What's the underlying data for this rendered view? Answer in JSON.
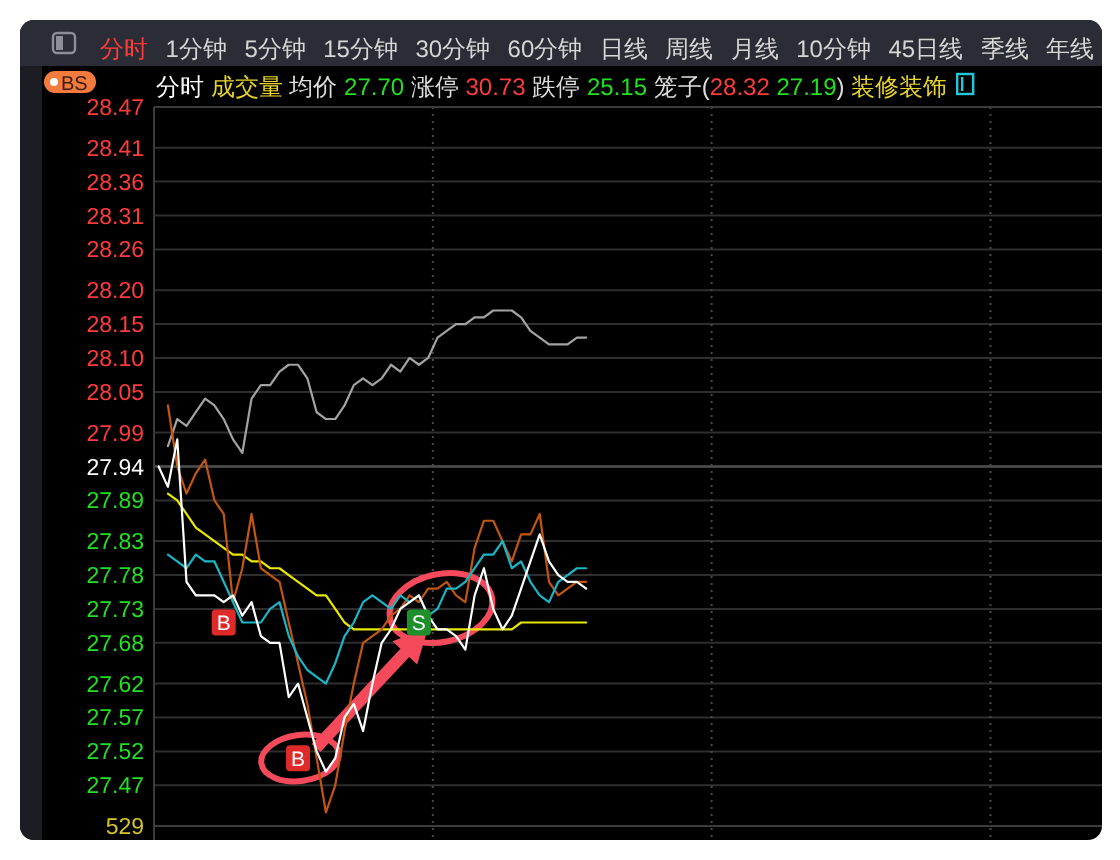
{
  "chart_data": {
    "type": "line",
    "subtitle": "分时 成交量 均价 27.70 涨停 30.73 跌停 25.15 笼子(28.32 27.19) 装修装饰",
    "annotations": [
      "分时",
      "1分钟",
      "5分钟",
      "15分钟",
      "30分钟",
      "60分钟",
      "日线",
      "周线",
      "月线",
      "10分钟",
      "45日线",
      "季线",
      "年线",
      "BS",
      "529"
    ],
    "categories": [
      null,
      null,
      null,
      null,
      null,
      null,
      null,
      null,
      null,
      null,
      null,
      null,
      null,
      null,
      null,
      null,
      null,
      null,
      null,
      null,
      null,
      null,
      null,
      null,
      null,
      null,
      null,
      null,
      null,
      null,
      null,
      null,
      null,
      null,
      null,
      null,
      null,
      null,
      null,
      null,
      null,
      null,
      null,
      null,
      null,
      null,
      null,
      null,
      null,
      null,
      null,
      null,
      null,
      null,
      null,
      null,
      null,
      null,
      null,
      null,
      null,
      null,
      null,
      null,
      null,
      null,
      null,
      null,
      null,
      null,
      null,
      null,
      null,
      null,
      null,
      null,
      null,
      null,
      null,
      null,
      null,
      null,
      null,
      null,
      null,
      null,
      null,
      null,
      null,
      null,
      null,
      null,
      null,
      null,
      null,
      null,
      null,
      null,
      null,
      null,
      null,
      null
    ],
    "ylim": [
      27.41,
      28.47
    ],
    "yticks": [
      28.47,
      28.41,
      28.36,
      28.31,
      28.26,
      {
        "value": 28.2,
        "label": "28.20"
      },
      28.15,
      {
        "value": 28.1,
        "label": "28.10"
      },
      28.05,
      27.99,
      27.94,
      27.89,
      27.83,
      27.78,
      27.73,
      27.68,
      27.62,
      27.57,
      27.52,
      27.47
    ],
    "tick_labels": "y",
    "grid": "y",
    "ref_lines": [
      {
        "axis": "y",
        "value": 27.94,
        "color": "#4d4d4d"
      }
    ],
    "series": [
      {
        "color": "#a3a3a3",
        "values": [
          null,
          27.97,
          28.01,
          28.0,
          28.02,
          28.04,
          28.03,
          28.01,
          27.98,
          27.96,
          28.04,
          28.06,
          28.06,
          28.08,
          28.09,
          28.09,
          28.07,
          28.02,
          28.01,
          28.01,
          28.03,
          28.06,
          28.07,
          28.06,
          28.07,
          28.09,
          28.08,
          28.1,
          28.09,
          28.1,
          28.13,
          28.14,
          28.15,
          28.15,
          28.16,
          28.16,
          28.17,
          28.17,
          28.17,
          28.16,
          28.14,
          28.13,
          28.12,
          28.12,
          28.12,
          28.13,
          28.13,
          null,
          null,
          null,
          null,
          null,
          null,
          null,
          null,
          null,
          null,
          null,
          null,
          null,
          null,
          null,
          null,
          null,
          null,
          null,
          null,
          null,
          null,
          null,
          null,
          null,
          null,
          null,
          null,
          null,
          null,
          null,
          null,
          null,
          null,
          null,
          null,
          null,
          null,
          null,
          null,
          null,
          null,
          null,
          null,
          null,
          null,
          null,
          null,
          null,
          null,
          null,
          null,
          null,
          null,
          null
        ]
      },
      {
        "color": "#e8e800",
        "values": [
          null,
          27.9,
          27.89,
          27.87,
          27.85,
          27.84,
          27.83,
          27.82,
          27.81,
          27.81,
          27.8,
          27.8,
          27.79,
          27.79,
          27.78,
          27.77,
          27.76,
          27.75,
          27.75,
          27.73,
          27.71,
          27.7,
          27.7,
          27.7,
          27.7,
          27.7,
          27.7,
          27.7,
          null,
          27.7,
          27.7,
          27.7,
          27.7,
          27.7,
          27.7,
          27.7,
          27.7,
          27.7,
          27.7,
          27.71,
          27.71,
          27.71,
          27.71,
          27.71,
          27.71,
          27.71,
          27.71,
          null,
          null,
          null,
          null,
          null,
          null,
          null,
          null,
          null,
          null,
          null,
          null,
          null,
          null,
          null,
          null,
          null,
          null,
          null,
          null,
          null,
          null,
          null,
          null,
          null,
          null,
          null,
          null,
          null,
          null,
          null,
          null,
          null,
          null,
          null,
          null,
          null,
          null,
          null,
          null,
          null,
          null,
          null,
          null,
          null,
          null,
          null,
          null,
          null,
          null,
          null,
          null,
          null,
          null,
          null
        ]
      },
      {
        "color": "#c2560f",
        "values": [
          null,
          28.03,
          27.94,
          27.9,
          27.93,
          27.95,
          27.89,
          27.87,
          27.74,
          27.79,
          27.87,
          27.79,
          27.78,
          27.77,
          27.71,
          27.65,
          27.59,
          27.51,
          27.43,
          27.47,
          27.55,
          27.62,
          27.68,
          27.69,
          27.7,
          27.72,
          27.73,
          27.75,
          27.74,
          27.76,
          27.76,
          27.77,
          27.75,
          27.74,
          27.82,
          27.86,
          27.86,
          27.83,
          27.8,
          27.84,
          27.84,
          27.87,
          27.77,
          27.75,
          27.76,
          27.77,
          27.77,
          null,
          null,
          null,
          null,
          null,
          null,
          null,
          null,
          null,
          null,
          null,
          null,
          null,
          null,
          null,
          null,
          null,
          null,
          null,
          null,
          null,
          null,
          null,
          null,
          null,
          null,
          null,
          null,
          null,
          null,
          null,
          null,
          null,
          null,
          null,
          null,
          null,
          null,
          null,
          null,
          null,
          null,
          null,
          null,
          null,
          null,
          null,
          null,
          null,
          null,
          null,
          null,
          null,
          null,
          null
        ]
      },
      {
        "color": "#1ab6c6",
        "values": [
          null,
          27.81,
          27.8,
          27.79,
          27.81,
          27.8,
          27.8,
          27.77,
          27.74,
          27.71,
          27.71,
          27.71,
          27.73,
          27.74,
          27.69,
          27.66,
          27.64,
          27.63,
          27.62,
          27.65,
          27.69,
          27.71,
          27.74,
          27.75,
          27.74,
          27.73,
          27.75,
          27.74,
          27.75,
          27.72,
          27.73,
          27.76,
          27.76,
          27.77,
          27.79,
          27.81,
          27.81,
          27.83,
          27.79,
          27.8,
          27.77,
          27.75,
          27.74,
          27.77,
          27.78,
          27.79,
          27.79,
          null,
          null,
          null,
          null,
          null,
          null,
          null,
          null,
          null,
          null,
          null,
          null,
          null,
          null,
          null,
          null,
          null,
          null,
          null,
          null,
          null,
          null,
          null,
          null,
          null,
          null,
          null,
          null,
          null,
          null,
          null,
          null,
          null,
          null,
          null,
          null,
          null,
          null,
          null,
          null,
          null,
          null,
          null,
          null,
          null,
          null,
          null,
          null,
          null,
          null,
          null,
          null,
          null,
          null,
          null
        ]
      },
      {
        "color": "#ffffff",
        "values": [
          27.94,
          27.91,
          27.98,
          27.77,
          27.75,
          27.75,
          27.75,
          27.74,
          27.75,
          27.72,
          27.74,
          27.69,
          27.68,
          27.68,
          27.6,
          27.62,
          27.57,
          27.52,
          27.49,
          27.51,
          27.57,
          27.59,
          27.55,
          27.62,
          27.68,
          27.7,
          27.73,
          27.74,
          27.75,
          27.72,
          27.7,
          27.7,
          27.69,
          27.67,
          27.75,
          27.79,
          27.73,
          27.7,
          27.72,
          27.76,
          27.8,
          27.84,
          27.8,
          27.78,
          27.77,
          27.77,
          27.76,
          null,
          null,
          null,
          null,
          null,
          null,
          null,
          null,
          null,
          null,
          null,
          null,
          null,
          null,
          null,
          null,
          null,
          null,
          null,
          null,
          null,
          null,
          null,
          null,
          null,
          null,
          null,
          null,
          null,
          null,
          null,
          null,
          null,
          null,
          null,
          null,
          null,
          null,
          null,
          null,
          null,
          null,
          null,
          null,
          null,
          null,
          null,
          null,
          null,
          null,
          null,
          null,
          null,
          null,
          null
        ]
      },
      {
        "type": "scatter",
        "marker": "square",
        "name": "B",
        "color": "#e02a2a",
        "values": [
          null,
          null,
          null,
          null,
          null,
          null,
          null,
          27.71,
          null,
          null,
          null,
          null,
          null,
          null,
          null,
          27.51,
          null,
          null,
          null,
          null,
          null,
          null,
          null,
          null,
          null,
          null,
          null,
          null,
          null,
          null,
          null,
          null,
          null,
          null,
          null,
          null,
          null,
          null,
          null,
          null,
          null,
          null,
          null,
          null,
          null,
          null,
          null,
          null,
          null,
          null,
          null,
          null,
          null,
          null,
          null,
          null,
          null,
          null,
          null,
          null,
          null,
          null,
          null,
          null,
          null,
          null,
          null,
          null,
          null,
          null,
          null,
          null,
          null,
          null,
          null,
          null,
          null,
          null,
          null,
          null,
          null,
          null,
          null,
          null,
          null,
          null,
          null,
          null,
          null,
          null,
          null,
          null,
          null,
          null,
          null,
          null,
          null,
          null,
          null,
          null,
          null,
          null
        ]
      },
      {
        "type": "scatter",
        "marker": "square",
        "name": "S",
        "color": "#1f8f2c",
        "values": [
          null,
          null,
          null,
          null,
          null,
          null,
          null,
          null,
          null,
          null,
          null,
          null,
          null,
          null,
          null,
          null,
          null,
          null,
          null,
          null,
          null,
          null,
          null,
          null,
          null,
          null,
          null,
          null,
          27.71,
          null,
          null,
          null,
          null,
          null,
          null,
          null,
          null,
          null,
          null,
          null,
          null,
          null,
          null,
          null,
          null,
          null,
          null,
          null,
          null,
          null,
          null,
          null,
          null,
          null,
          null,
          null,
          null,
          null,
          null,
          null,
          null,
          null,
          null,
          null,
          null,
          null,
          null,
          null,
          null,
          null,
          null,
          null,
          null,
          null,
          null,
          null,
          null,
          null,
          null,
          null,
          null,
          null,
          null,
          null,
          null,
          null,
          null,
          null,
          null,
          null,
          null,
          null,
          null,
          null,
          null,
          null,
          null,
          null,
          null,
          null,
          null,
          null
        ]
      }
    ]
  }
}
